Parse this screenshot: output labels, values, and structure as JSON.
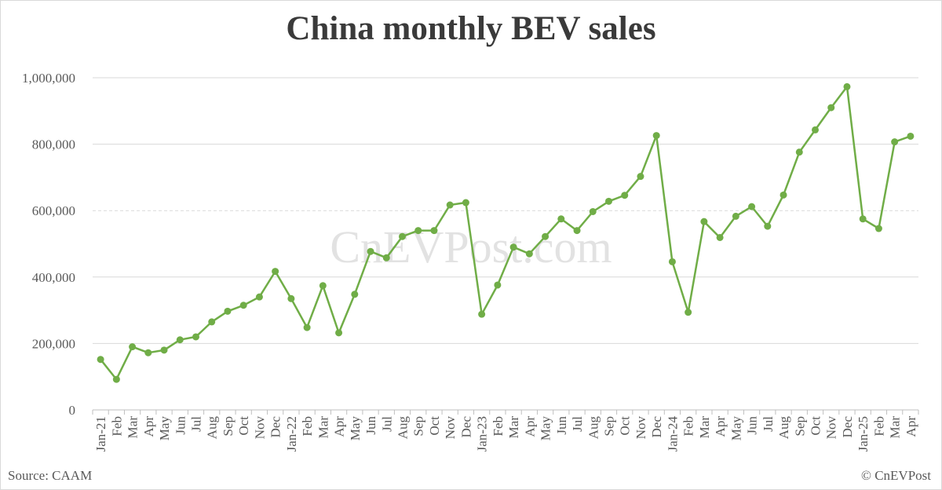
{
  "chart_data": {
    "type": "line",
    "title": "China monthly BEV sales",
    "xlabel": "",
    "ylabel": "",
    "ylim": [
      0,
      1000000
    ],
    "yticks": [
      "0",
      "200,000",
      "400,000",
      "600,000",
      "800,000",
      "1,000,000"
    ],
    "categories": [
      "Jan-21",
      "Feb",
      "Mar",
      "Apr",
      "May",
      "Jun",
      "Jul",
      "Aug",
      "Sep",
      "Oct",
      "Nov",
      "Dec",
      "Jan-22",
      "Feb",
      "Mar",
      "Apr",
      "May",
      "Jun",
      "Jul",
      "Aug",
      "Sep",
      "Oct",
      "Nov",
      "Dec",
      "Jan-23",
      "Feb",
      "Mar",
      "Apr",
      "May",
      "Jun",
      "Jul",
      "Aug",
      "Sep",
      "Oct",
      "Nov",
      "Dec",
      "Jan-24",
      "Feb",
      "Mar",
      "Apr",
      "May",
      "Jun",
      "Jul",
      "Aug",
      "Sep",
      "Oct",
      "Nov",
      "Dec",
      "Jan-25",
      "Feb",
      "Mar",
      "Apr"
    ],
    "series": [
      {
        "values": [
          152000,
          92000,
          190000,
          172000,
          180000,
          211000,
          220000,
          265000,
          297000,
          315000,
          340000,
          417000,
          335000,
          248000,
          374000,
          232000,
          348000,
          477000,
          458000,
          522000,
          540000,
          540000,
          617000,
          624000,
          288000,
          376000,
          490000,
          470000,
          522000,
          575000,
          540000,
          597000,
          628000,
          646000,
          703000,
          826000,
          446000,
          294000,
          567000,
          519000,
          583000,
          612000,
          553000,
          647000,
          776000,
          843000,
          910000,
          973000,
          575000,
          546000,
          807000,
          824000
        ]
      }
    ],
    "grid": true,
    "legend": "none",
    "colors": {
      "line": "#70ad47",
      "grid": "#d9d9d9",
      "text": "#595959",
      "title": "#3a3a3a"
    }
  },
  "watermark": "CnEVPost.com",
  "footer": {
    "source": "Source: CAAM",
    "copyright": "© CnEVPost"
  }
}
